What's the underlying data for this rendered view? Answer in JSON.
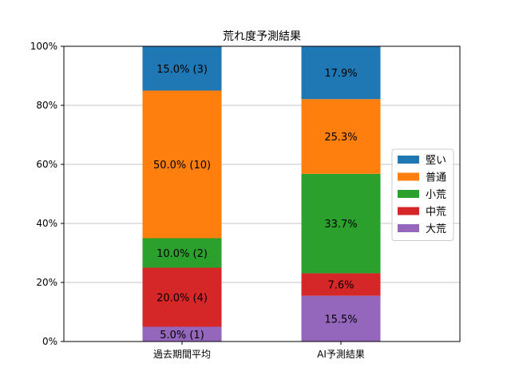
{
  "chart_data": {
    "type": "bar",
    "stacked": true,
    "title": "荒れ度予測結果",
    "xlabel": "",
    "ylabel": "",
    "categories": [
      "過去期間平均",
      "AI予測結果"
    ],
    "ylim": [
      0,
      100
    ],
    "y_ticks": [
      "0%",
      "20%",
      "40%",
      "60%",
      "80%",
      "100%"
    ],
    "grid": "horizontal",
    "legend_position": "right",
    "series": [
      {
        "name": "大荒",
        "color": "#9467bd",
        "values": [
          5.0,
          15.5
        ],
        "labels": [
          "5.0% (1)",
          "15.5%"
        ]
      },
      {
        "name": "中荒",
        "color": "#d62728",
        "values": [
          20.0,
          7.6
        ],
        "labels": [
          "20.0% (4)",
          "7.6%"
        ]
      },
      {
        "name": "小荒",
        "color": "#2ca02c",
        "values": [
          10.0,
          33.7
        ],
        "labels": [
          "10.0% (2)",
          "33.7%"
        ]
      },
      {
        "name": "普通",
        "color": "#ff7f0e",
        "values": [
          50.0,
          25.3
        ],
        "labels": [
          "50.0% (10)",
          "25.3%"
        ]
      },
      {
        "name": "堅い",
        "color": "#1f77b4",
        "values": [
          15.0,
          17.9
        ],
        "labels": [
          "15.0% (3)",
          "17.9%"
        ]
      }
    ],
    "legend_order": [
      "堅い",
      "普通",
      "小荒",
      "中荒",
      "大荒"
    ]
  }
}
